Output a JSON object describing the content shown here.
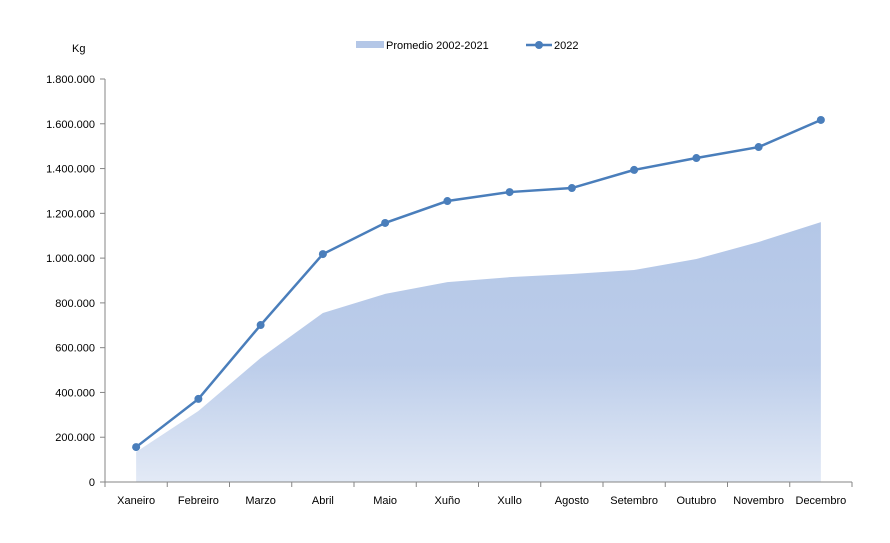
{
  "chart_data": {
    "type": "line",
    "ylabel": "Kg",
    "ylim": [
      0,
      1800000
    ],
    "yticks": [
      0,
      200000,
      400000,
      600000,
      800000,
      1000000,
      1200000,
      1400000,
      1600000,
      1800000
    ],
    "ytick_labels": [
      "0",
      "200.000",
      "400.000",
      "600.000",
      "800.000",
      "1.000.000",
      "1.200.000",
      "1.400.000",
      "1.600.000",
      "1.800.000"
    ],
    "categories": [
      "Xaneiro",
      "Febreiro",
      "Marzo",
      "Abril",
      "Maio",
      "Xuño",
      "Xullo",
      "Agosto",
      "Setembro",
      "Outubro",
      "Novembro",
      "Decembro"
    ],
    "legend_position": "top",
    "grid": false,
    "series": [
      {
        "name": "Promedio 2002-2021",
        "kind": "area",
        "color": "#b4c7e7",
        "values": [
          134000,
          317000,
          554000,
          755000,
          840000,
          893000,
          915000,
          929000,
          947000,
          996000,
          1072000,
          1161000
        ]
      },
      {
        "name": "2022",
        "kind": "line",
        "color": "#4a7ebb",
        "values": [
          156000,
          371000,
          701000,
          1018000,
          1157000,
          1255000,
          1295000,
          1313000,
          1394000,
          1447000,
          1496000,
          1617000
        ]
      }
    ]
  }
}
